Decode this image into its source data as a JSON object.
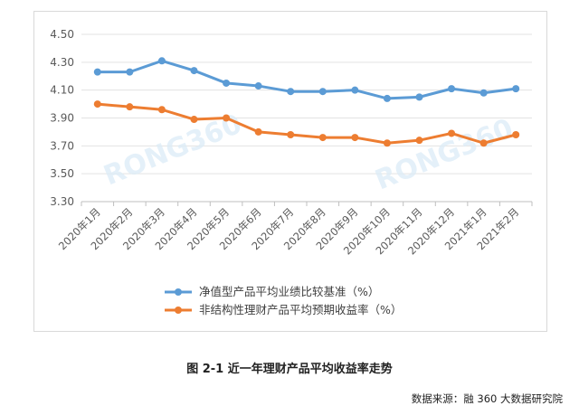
{
  "chart_data": {
    "type": "line",
    "categories": [
      "2020年1月",
      "2020年2月",
      "2020年3月",
      "2020年4月",
      "2020年5月",
      "2020年6月",
      "2020年7月",
      "2020年8月",
      "2020年9月",
      "2020年10月",
      "2020年11月",
      "2020年12月",
      "2021年1月",
      "2021年2月"
    ],
    "series": [
      {
        "name": "净值型产品平均业绩比较基准（%）",
        "color": "#5b9bd5",
        "values": [
          4.23,
          4.23,
          4.31,
          4.24,
          4.15,
          4.13,
          4.09,
          4.09,
          4.1,
          4.04,
          4.05,
          4.11,
          4.08,
          4.11
        ]
      },
      {
        "name": "非结构性理财产品平均预期收益率（%）",
        "color": "#ed7d31",
        "values": [
          4.0,
          3.98,
          3.96,
          3.89,
          3.9,
          3.8,
          3.78,
          3.76,
          3.76,
          3.72,
          3.74,
          3.79,
          3.72,
          3.78
        ]
      }
    ],
    "y_ticks": [
      "4.50",
      "4.30",
      "4.10",
      "3.90",
      "3.70",
      "3.50",
      "3.30"
    ],
    "ylim": [
      3.3,
      4.5
    ],
    "grid": true,
    "legend_position": "bottom"
  },
  "watermark": "RONG360",
  "caption": "图 2-1  近一年理财产品平均收益率走势",
  "source": "数据来源：融 360 大数据研究院"
}
